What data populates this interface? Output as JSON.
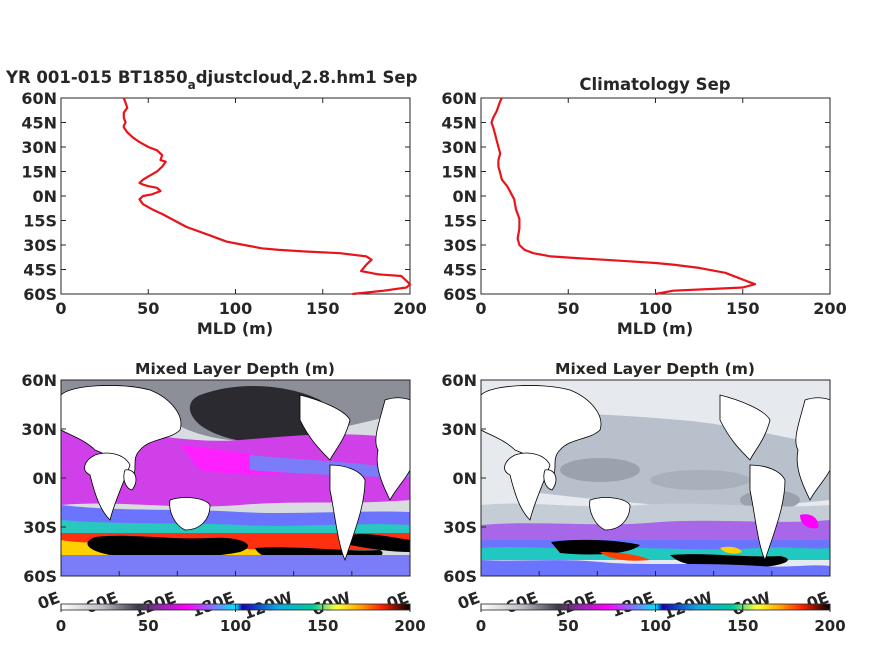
{
  "chart_data": [
    {
      "type": "line",
      "title_main": "YR 001-015 BT1850",
      "title_sub1": "a",
      "title_mid": "djustcloud",
      "title_sub2": "v",
      "title_end": "2.8.hm1 Sep",
      "xlabel": "MLD (m)",
      "ylabel": "",
      "xlim": [
        0,
        200
      ],
      "ylim": [
        -60,
        60
      ],
      "x_ticks": [
        "0",
        "50",
        "100",
        "150",
        "200"
      ],
      "y_ticks": [
        "60N",
        "45N",
        "30N",
        "15N",
        "0N",
        "15S",
        "30S",
        "45S",
        "60S"
      ],
      "color": "#e8141b",
      "x": [
        36,
        37,
        38,
        36,
        36,
        37,
        36,
        36,
        38,
        41,
        45,
        50,
        55,
        58,
        57,
        60,
        58,
        55,
        50,
        47,
        46,
        45,
        47,
        50,
        55,
        57,
        52,
        47,
        45,
        47,
        52,
        58,
        65,
        72,
        85,
        95,
        105,
        115,
        125,
        140,
        160,
        175,
        178,
        175,
        172,
        182,
        195,
        200,
        198,
        185,
        167
      ],
      "y": [
        60,
        57,
        54,
        51,
        48,
        45,
        43,
        42,
        39,
        36,
        33,
        30,
        28,
        25,
        22,
        21,
        18,
        15,
        12,
        10,
        9,
        8,
        7,
        6,
        5,
        3,
        1,
        0,
        -2,
        -5,
        -8,
        -11,
        -15,
        -19,
        -24,
        -28,
        -30,
        -32,
        -33,
        -34,
        -35,
        -37,
        -39,
        -42,
        -46,
        -48,
        -49,
        -54,
        -56,
        -58,
        -60
      ]
    },
    {
      "type": "line",
      "title": "Climatology Sep",
      "xlabel": "MLD (m)",
      "ylabel": "",
      "xlim": [
        0,
        200
      ],
      "ylim": [
        -60,
        60
      ],
      "x_ticks": [
        "0",
        "50",
        "100",
        "150",
        "200"
      ],
      "y_ticks": [
        "60N",
        "45N",
        "30N",
        "15N",
        "0N",
        "15S",
        "30S",
        "45S",
        "60S"
      ],
      "color": "#e8141b",
      "x": [
        12,
        11,
        10,
        9,
        7,
        6,
        7,
        8,
        9,
        10,
        11,
        10,
        10,
        11,
        12,
        15,
        17,
        19,
        20,
        22,
        22,
        21,
        22,
        25,
        30,
        40,
        55,
        70,
        85,
        100,
        110,
        125,
        140,
        152,
        157,
        150,
        130,
        110,
        100
      ],
      "y": [
        60,
        58,
        55,
        52,
        48,
        45,
        42,
        38,
        34,
        30,
        26,
        22,
        18,
        14,
        10,
        6,
        2,
        -2,
        -8,
        -14,
        -20,
        -26,
        -30,
        -33,
        -35,
        -37,
        -38,
        -39,
        -40,
        -41,
        -42,
        -44,
        -47,
        -52,
        -54,
        -56,
        -57,
        -58,
        -60
      ]
    },
    {
      "type": "heatmap",
      "title": "Mixed Layer Depth (m)",
      "x_ticks": [
        "0E",
        "60E",
        "120E",
        "180E",
        "120W",
        "60W",
        "0E"
      ],
      "y_ticks": [
        "60N",
        "30N",
        "0N",
        "30S",
        "60S"
      ],
      "colorbar_ticks": [
        "0",
        "50",
        "100",
        "150",
        "200"
      ],
      "colorbar_range": [
        0,
        200
      ],
      "colormap": [
        "#ffffff",
        "#3c3c46",
        "#ff00ff",
        "#00e8ff",
        "#1800b0",
        "#00c8a0",
        "#ffff00",
        "#ff2000",
        "#000000"
      ]
    },
    {
      "type": "heatmap",
      "title": "Mixed Layer Depth (m)",
      "x_ticks": [
        "0E",
        "60E",
        "120E",
        "180E",
        "120W",
        "60W",
        "0E"
      ],
      "y_ticks": [
        "60N",
        "30N",
        "0N",
        "30S",
        "60S"
      ],
      "colorbar_ticks": [
        "0",
        "50",
        "100",
        "150",
        "200"
      ],
      "colorbar_range": [
        0,
        200
      ],
      "colormap": [
        "#ffffff",
        "#3c3c46",
        "#ff00ff",
        "#00e8ff",
        "#1800b0",
        "#00c8a0",
        "#ffff00",
        "#ff2000",
        "#000000"
      ]
    }
  ]
}
